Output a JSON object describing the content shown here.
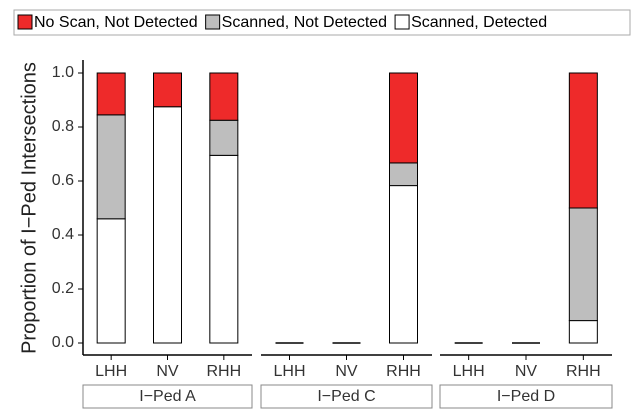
{
  "chart_data": [
    {
      "type": "bar",
      "title": "I−Ped A",
      "ylabel": "Proportion of I−Ped Intersections",
      "categories": [
        "LHH",
        "NV",
        "RHH"
      ],
      "ylim": [
        0,
        1
      ],
      "yticks": [
        {
          "value": 0,
          "label": "0.0"
        },
        0.2,
        0.4,
        0.6,
        0.8,
        {
          "value": 1,
          "label": "1.0"
        }
      ],
      "series": [
        {
          "name": "Scanned, Detected",
          "color": "#ffffff",
          "values": [
            0.46,
            0.875,
            0.695
          ]
        },
        {
          "name": "Scanned, Not Detected",
          "color": "#bebebe",
          "values": [
            0.385,
            0,
            0.13
          ]
        },
        {
          "name": "No Scan, Not Detected",
          "color": "#ee2a2a",
          "values": [
            0.155,
            0.125,
            0.175
          ]
        }
      ]
    },
    {
      "type": "bar",
      "title": "I−Ped C",
      "categories": [
        "LHH",
        "NV",
        "RHH"
      ],
      "ylim": [
        0,
        1
      ],
      "series": [
        {
          "name": "Scanned, Detected",
          "color": "#ffffff",
          "values": [
            0,
            0,
            0.583
          ]
        },
        {
          "name": "Scanned, Not Detected",
          "color": "#bebebe",
          "values": [
            0,
            0,
            0.084
          ]
        },
        {
          "name": "No Scan, Not Detected",
          "color": "#ee2a2a",
          "values": [
            0,
            0,
            0.333
          ]
        }
      ]
    },
    {
      "type": "bar",
      "title": "I−Ped D",
      "categories": [
        "LHH",
        "NV",
        "RHH"
      ],
      "ylim": [
        0,
        1
      ],
      "series": [
        {
          "name": "Scanned, Detected",
          "color": "#ffffff",
          "values": [
            0,
            0,
            0.083
          ]
        },
        {
          "name": "Scanned, Not Detected",
          "color": "#bebebe",
          "values": [
            0,
            0,
            0.417
          ]
        },
        {
          "name": "No Scan, Not Detected",
          "color": "#ee2a2a",
          "values": [
            0,
            0,
            0.5
          ]
        }
      ]
    }
  ]
}
